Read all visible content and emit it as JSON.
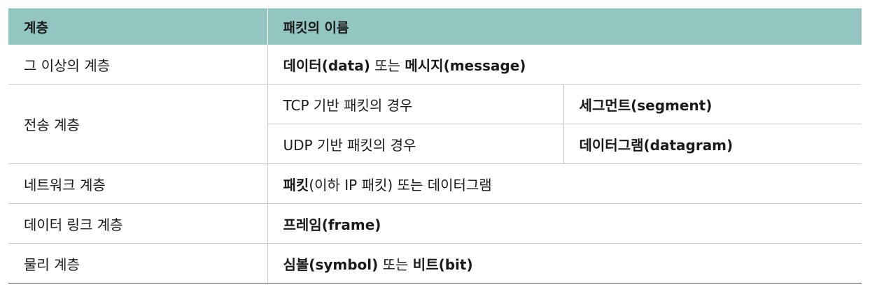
{
  "header": {
    "layer": "계층",
    "packet_name": "패킷의 이름"
  },
  "rows": [
    {
      "layer": "그 이상의 계층",
      "term1": "데이터(data)",
      "join": " 또는 ",
      "term2": "메시지(message)"
    },
    {
      "layer": "전송 계층",
      "sub": [
        {
          "basis": "TCP 기반 패킷의 경우",
          "name": "세그먼트(segment)"
        },
        {
          "basis": "UDP 기반 패킷의 경우",
          "name": "데이터그램(datagram)"
        }
      ]
    },
    {
      "layer": "네트워크 계층",
      "term1": "패킷",
      "rest": "(이하 IP 패킷) 또는 데이터그램"
    },
    {
      "layer": "데이터 링크 계층",
      "term1": "프레임(frame)"
    },
    {
      "layer": "물리 계층",
      "term1": "심볼(symbol)",
      "join": " 또는 ",
      "term2": "비트(bit)"
    }
  ]
}
